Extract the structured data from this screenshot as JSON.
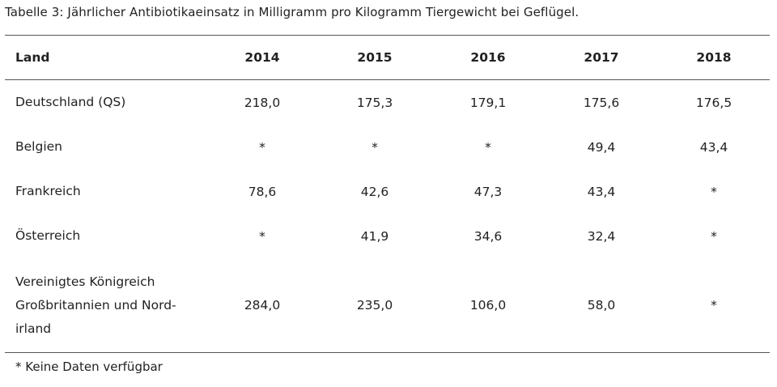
{
  "caption": "Tabelle 3: Jährlicher Antibiotikaeinsatz in Milligramm pro Kilogramm Tiergewicht bei Geflügel.",
  "table": {
    "headers": [
      "Land",
      "2014",
      "2015",
      "2016",
      "2017",
      "2018"
    ],
    "rows": [
      {
        "land": [
          "Deutschland (QS)"
        ],
        "values": [
          "218,0",
          "175,3",
          "179,1",
          "175,6",
          "176,5"
        ]
      },
      {
        "land": [
          "Belgien"
        ],
        "values": [
          "*",
          "*",
          "*",
          "49,4",
          "43,4"
        ]
      },
      {
        "land": [
          "Frankreich"
        ],
        "values": [
          "78,6",
          "42,6",
          "47,3",
          "43,4",
          "*"
        ]
      },
      {
        "land": [
          "Österreich"
        ],
        "values": [
          "*",
          "41,9",
          "34,6",
          "32,4",
          "*"
        ]
      },
      {
        "land": [
          "Vereinigtes Königreich",
          "Großbritannien und Nord-",
          "irland"
        ],
        "values": [
          "284,0",
          "235,0",
          "106,0",
          "58,0",
          "*"
        ]
      }
    ]
  },
  "footnote": "* Keine Daten verfügbar"
}
